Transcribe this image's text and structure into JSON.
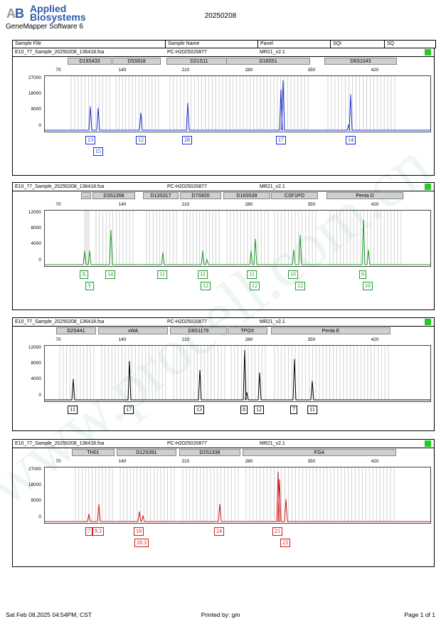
{
  "header": {
    "brand_line1": "Applied",
    "brand_line2": "Biosystems",
    "software": "GeneMapper Software 6",
    "date": "20250208"
  },
  "table_header": {
    "sample_file": "Sample File",
    "sample_name": "Sample Name",
    "panel": "Panel",
    "sqi": "SQI",
    "sq": "SQ"
  },
  "x_ticks": [
    "70",
    "140",
    "210",
    "280",
    "350",
    "420"
  ],
  "panels": [
    {
      "file": "E10_77_Sample_20250208_136418.fsa",
      "name": "PC-H2025020877",
      "panel": "MR21_v2.1",
      "color": "#1a2fd0",
      "y_ticks": [
        "27000",
        "18000",
        "9000",
        "0"
      ],
      "markers": [
        "D19S433",
        "D5S818",
        "D21S11",
        "D18S51",
        "D6S1043"
      ],
      "alleles_row1": [
        "13",
        "12",
        "28",
        "17",
        "14"
      ],
      "alleles_row2": [
        "15"
      ]
    },
    {
      "file": "E10_77_Sample_20250208_136418.fsa",
      "name": "PC-H2025020877",
      "panel": "MR21_v2.1",
      "color": "#1e9a2a",
      "y_ticks": [
        "12000",
        "8000",
        "4000",
        "0"
      ],
      "markers": [
        "...",
        "D3S1358",
        "D13S317",
        "D7S820",
        "D16S539",
        "CSF1PO",
        "Penta D"
      ],
      "alleles_row1": [
        "X",
        "14",
        "11",
        "11",
        "11",
        "10",
        "9"
      ],
      "alleles_row2": [
        "Y",
        "12",
        "12",
        "12",
        "10"
      ]
    },
    {
      "file": "E10_77_Sample_20250208_136418.fsa",
      "name": "PC-H2025020877",
      "panel": "MR21_v2.1",
      "color": "#000000",
      "y_ticks": [
        "12000",
        "8000",
        "4000",
        "0"
      ],
      "markers": [
        "D2S441",
        "vWA",
        "D8S1179",
        "TPOX",
        "Penta E"
      ],
      "alleles_row1": [
        "11",
        "17",
        "13",
        "8",
        "12",
        "7",
        "11"
      ],
      "alleles_row2": []
    },
    {
      "file": "E10_77_Sample_20250208_136418.fsa",
      "name": "PC-H2025020877",
      "panel": "MR21_v2.1",
      "color": "#cc1a1a",
      "y_ticks": [
        "27000",
        "18000",
        "9000",
        "0"
      ],
      "markers": [
        "TH01",
        "D12S391",
        "D2S1338",
        "FGA"
      ],
      "alleles_row1": [
        "7",
        "9.3",
        "18",
        "24",
        "21"
      ],
      "alleles_row2": [
        "18.3",
        "23"
      ]
    }
  ],
  "footer": {
    "datetime": "Sat Feb 08,2025 04:54PM, CST",
    "printed_by": "Printed by: gm",
    "page": "Page 1 of 1"
  }
}
